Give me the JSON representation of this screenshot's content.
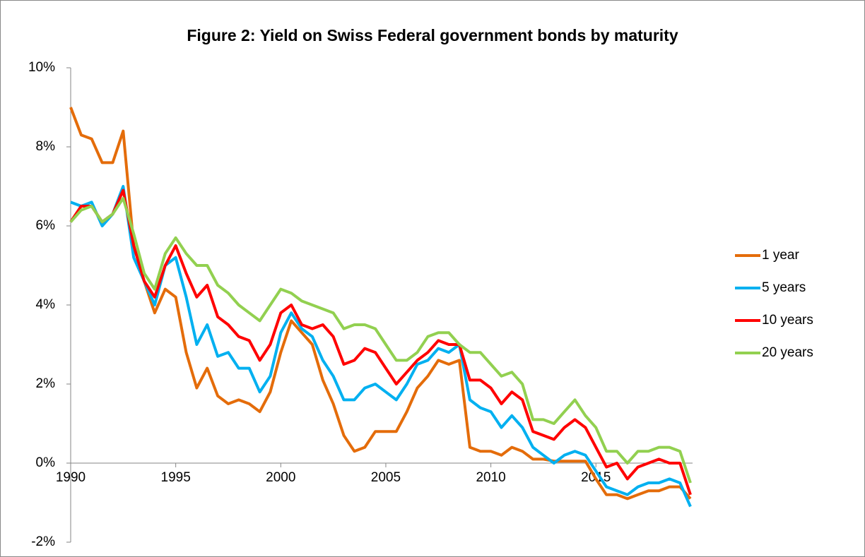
{
  "chart_data": {
    "type": "line",
    "title": "Figure 2: Yield on Swiss Federal government bonds by maturity",
    "x": [
      1990,
      1990.5,
      1991,
      1991.5,
      1992,
      1992.5,
      1993,
      1993.5,
      1994,
      1994.5,
      1995,
      1995.5,
      1996,
      1996.5,
      1997,
      1997.5,
      1998,
      1998.5,
      1999,
      1999.5,
      2000,
      2000.5,
      2001,
      2001.5,
      2002,
      2002.5,
      2003,
      2003.5,
      2004,
      2004.5,
      2005,
      2005.5,
      2006,
      2006.5,
      2007,
      2007.5,
      2008,
      2008.5,
      2009,
      2009.5,
      2010,
      2010.5,
      2011,
      2011.5,
      2012,
      2012.5,
      2013,
      2013.5,
      2014,
      2014.5,
      2015,
      2015.5,
      2016,
      2016.5,
      2017,
      2017.5,
      2018,
      2018.5,
      2019,
      2019.5
    ],
    "series": [
      {
        "name": "1 year",
        "color": "#e46c0a",
        "values": [
          9.0,
          8.3,
          8.2,
          7.6,
          7.6,
          8.4,
          5.5,
          4.6,
          3.8,
          4.4,
          4.2,
          2.8,
          1.9,
          2.4,
          1.7,
          1.5,
          1.6,
          1.5,
          1.3,
          1.8,
          2.8,
          3.6,
          3.3,
          3.0,
          2.1,
          1.5,
          0.7,
          0.3,
          0.4,
          0.8,
          0.8,
          0.8,
          1.3,
          1.9,
          2.2,
          2.6,
          2.5,
          2.6,
          0.4,
          0.3,
          0.3,
          0.2,
          0.4,
          0.3,
          0.1,
          0.1,
          0.05,
          0.05,
          0.05,
          0.05,
          -0.4,
          -0.8,
          -0.8,
          -0.9,
          -0.8,
          -0.7,
          -0.7,
          -0.6,
          -0.6,
          -0.9
        ]
      },
      {
        "name": "5 years",
        "color": "#00b0f0",
        "values": [
          6.6,
          6.5,
          6.6,
          6.0,
          6.3,
          7.0,
          5.2,
          4.6,
          4.0,
          5.0,
          5.2,
          4.2,
          3.0,
          3.5,
          2.7,
          2.8,
          2.4,
          2.4,
          1.8,
          2.2,
          3.3,
          3.8,
          3.4,
          3.2,
          2.6,
          2.2,
          1.6,
          1.6,
          1.9,
          2.0,
          1.8,
          1.6,
          2.0,
          2.5,
          2.6,
          2.9,
          2.8,
          3.0,
          1.6,
          1.4,
          1.3,
          0.9,
          1.2,
          0.9,
          0.4,
          0.2,
          0.0,
          0.2,
          0.3,
          0.2,
          -0.2,
          -0.6,
          -0.7,
          -0.8,
          -0.6,
          -0.5,
          -0.5,
          -0.4,
          -0.5,
          -1.1
        ]
      },
      {
        "name": "10 years",
        "color": "#ff0000",
        "values": [
          6.1,
          6.5,
          6.5,
          6.1,
          6.3,
          6.9,
          5.5,
          4.6,
          4.2,
          5.0,
          5.5,
          4.8,
          4.2,
          4.5,
          3.7,
          3.5,
          3.2,
          3.1,
          2.6,
          3.0,
          3.8,
          4.0,
          3.5,
          3.4,
          3.5,
          3.2,
          2.5,
          2.6,
          2.9,
          2.8,
          2.4,
          2.0,
          2.3,
          2.6,
          2.8,
          3.1,
          3.0,
          3.0,
          2.1,
          2.1,
          1.9,
          1.5,
          1.8,
          1.6,
          0.8,
          0.7,
          0.6,
          0.9,
          1.1,
          0.9,
          0.4,
          -0.1,
          0.0,
          -0.4,
          -0.1,
          0.0,
          0.1,
          0.0,
          0.0,
          -0.8
        ]
      },
      {
        "name": "20 years",
        "color": "#92d050",
        "values": [
          6.1,
          6.4,
          6.5,
          6.1,
          6.3,
          6.7,
          5.8,
          4.8,
          4.4,
          5.3,
          5.7,
          5.3,
          5.0,
          5.0,
          4.5,
          4.3,
          4.0,
          3.8,
          3.6,
          4.0,
          4.4,
          4.3,
          4.1,
          4.0,
          3.9,
          3.8,
          3.4,
          3.5,
          3.5,
          3.4,
          3.0,
          2.6,
          2.6,
          2.8,
          3.2,
          3.3,
          3.3,
          3.0,
          2.8,
          2.8,
          2.5,
          2.2,
          2.3,
          2.0,
          1.1,
          1.1,
          1.0,
          1.3,
          1.6,
          1.2,
          0.9,
          0.3,
          0.3,
          0.0,
          0.3,
          0.3,
          0.4,
          0.4,
          0.3,
          -0.5
        ]
      }
    ],
    "xlim": [
      1990,
      2019.6
    ],
    "xticks": [
      1990,
      1995,
      2000,
      2005,
      2010,
      2015
    ],
    "ylim": [
      -2,
      10
    ],
    "yticks": [
      {
        "value": -2,
        "label": "-2%"
      },
      {
        "value": 0,
        "label": "0%"
      },
      {
        "value": 2,
        "label": "2%"
      },
      {
        "value": 4,
        "label": "4%"
      },
      {
        "value": 6,
        "label": "6%"
      },
      {
        "value": 8,
        "label": "8%"
      },
      {
        "value": 10,
        "label": "10%"
      }
    ],
    "legend": "right"
  }
}
